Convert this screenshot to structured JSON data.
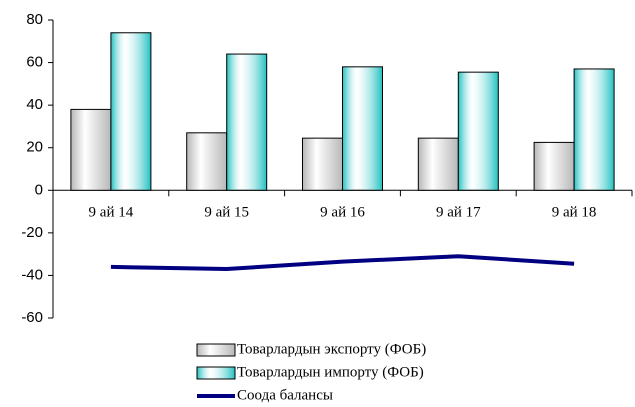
{
  "chart_data": {
    "type": "bar",
    "categories": [
      "9 ай 14",
      "9 ай 15",
      "9 ай 16",
      "9 ай 17",
      "9 ай 18"
    ],
    "series": [
      {
        "name": "Товарлардын экспорту (ФОБ)",
        "type": "bar",
        "color": "#b8b8b8",
        "values": [
          38,
          27,
          24.5,
          24.5,
          22.5
        ]
      },
      {
        "name": "Товарлардын импорту (ФОБ)",
        "type": "bar",
        "color": "#20c0c0",
        "values": [
          74,
          64,
          58,
          55.5,
          57
        ]
      },
      {
        "name": "Соода балансы",
        "type": "line",
        "color": "#000080",
        "values": [
          -36,
          -37,
          -33.5,
          -31,
          -34.5
        ]
      }
    ],
    "ylim": [
      -60,
      80
    ],
    "yticks": [
      -60,
      -40,
      -20,
      0,
      20,
      40,
      60,
      80
    ]
  }
}
